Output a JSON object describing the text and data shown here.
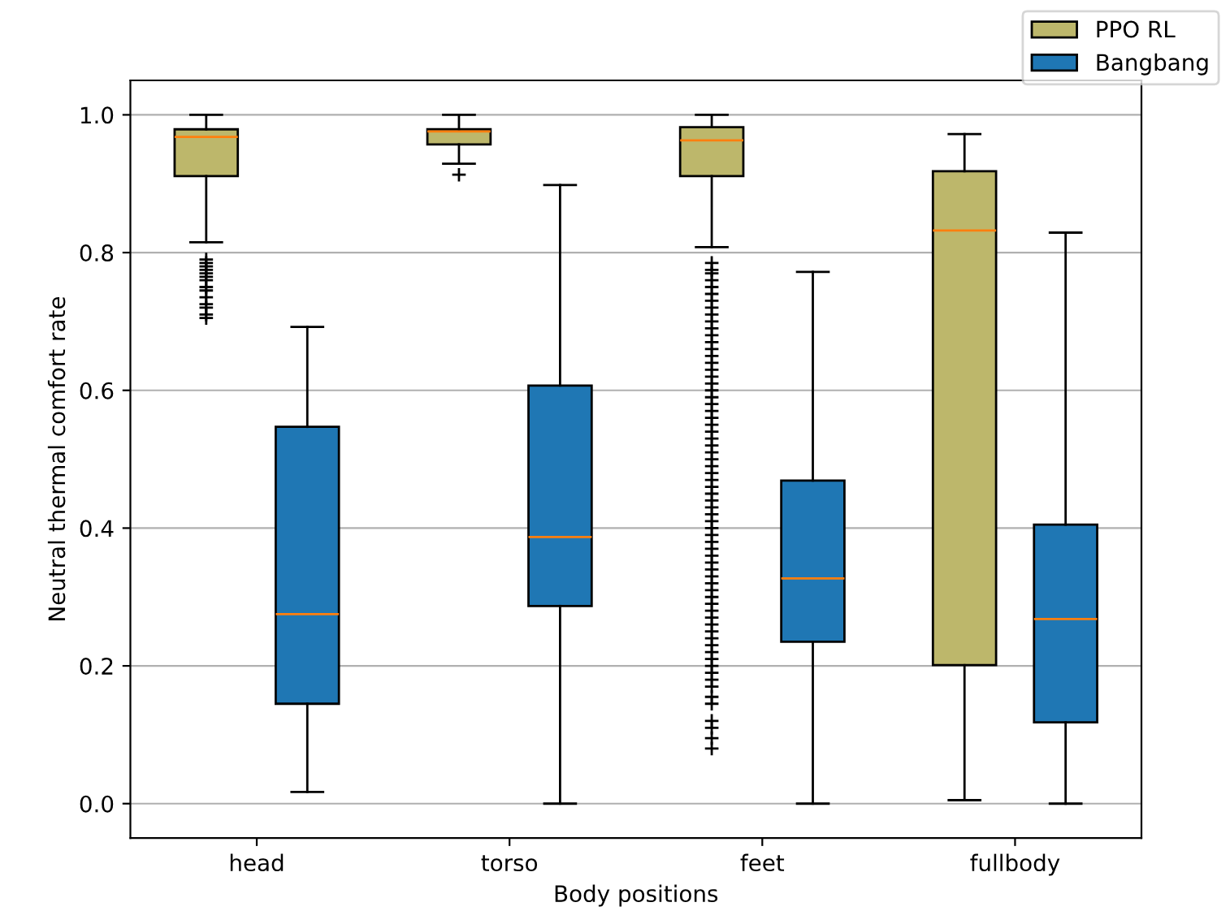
{
  "chart_data": {
    "type": "box",
    "xlabel": "Body positions",
    "ylabel": "Neutral thermal comfort rate",
    "categories": [
      "head",
      "torso",
      "feet",
      "fullbody"
    ],
    "series": [
      {
        "name": "PPO RL",
        "color": "#bdb76b",
        "boxes": [
          {
            "low": 0.815,
            "q1": 0.911,
            "median": 0.968,
            "q3": 0.979,
            "high": 1.0,
            "outliers": [
              0.79,
              0.785,
              0.78,
              0.775,
              0.77,
              0.765,
              0.76,
              0.75,
              0.745,
              0.735,
              0.725,
              0.72,
              0.71,
              0.705
            ]
          },
          {
            "low": 0.929,
            "q1": 0.957,
            "median": 0.976,
            "q3": 0.979,
            "high": 1.0,
            "outliers": [
              0.913
            ]
          },
          {
            "low": 0.808,
            "q1": 0.911,
            "median": 0.963,
            "q3": 0.982,
            "high": 1.0,
            "outliers": [
              0.785,
              0.775,
              0.77,
              0.76,
              0.75,
              0.74,
              0.73,
              0.72,
              0.71,
              0.7,
              0.69,
              0.68,
              0.67,
              0.66,
              0.65,
              0.64,
              0.63,
              0.62,
              0.61,
              0.6,
              0.59,
              0.58,
              0.57,
              0.56,
              0.55,
              0.54,
              0.53,
              0.52,
              0.51,
              0.5,
              0.49,
              0.48,
              0.47,
              0.46,
              0.45,
              0.44,
              0.43,
              0.42,
              0.41,
              0.4,
              0.39,
              0.38,
              0.37,
              0.36,
              0.35,
              0.34,
              0.33,
              0.32,
              0.31,
              0.3,
              0.29,
              0.28,
              0.27,
              0.26,
              0.25,
              0.24,
              0.23,
              0.22,
              0.21,
              0.2,
              0.19,
              0.18,
              0.17,
              0.155,
              0.145,
              0.12,
              0.11,
              0.095,
              0.08
            ]
          },
          {
            "low": 0.005,
            "q1": 0.201,
            "median": 0.832,
            "q3": 0.918,
            "high": 0.972
          }
        ]
      },
      {
        "name": "Bangbang",
        "color": "#1f77b4",
        "boxes": [
          {
            "low": 0.017,
            "q1": 0.145,
            "median": 0.275,
            "q3": 0.547,
            "high": 0.692
          },
          {
            "low": 0.0,
            "q1": 0.287,
            "median": 0.387,
            "q3": 0.607,
            "high": 0.898
          },
          {
            "low": 0.0,
            "q1": 0.235,
            "median": 0.327,
            "q3": 0.469,
            "high": 0.772
          },
          {
            "low": 0.0,
            "q1": 0.118,
            "median": 0.268,
            "q3": 0.405,
            "high": 0.829
          }
        ]
      }
    ],
    "ylim": [
      -0.05,
      1.05
    ],
    "yticks": [
      {
        "value": 0,
        "label": "0.0"
      },
      {
        "value": 0.2,
        "label": "0.2"
      },
      {
        "value": 0.4,
        "label": "0.4"
      },
      {
        "value": 0.6,
        "label": "0.6"
      },
      {
        "value": 0.8,
        "label": "0.8"
      },
      {
        "value": 1,
        "label": "1.0"
      }
    ],
    "grid": "y",
    "legend": "top right",
    "marker": "cross"
  }
}
